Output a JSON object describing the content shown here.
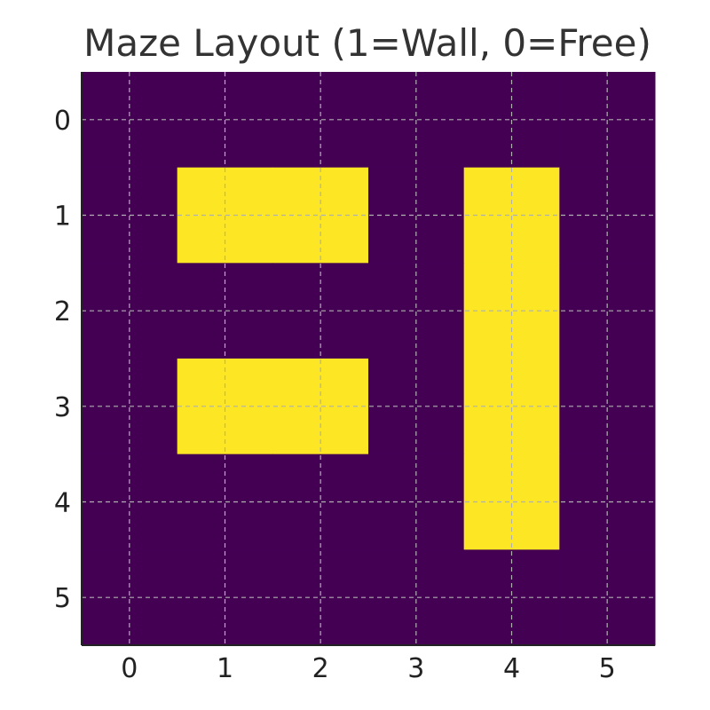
{
  "chart_data": {
    "type": "heatmap",
    "title": "Maze Layout (1=Wall, 0=Free)",
    "xlabel": "",
    "ylabel": "",
    "x_ticks": [
      "0",
      "1",
      "2",
      "3",
      "4",
      "5"
    ],
    "y_ticks": [
      "0",
      "1",
      "2",
      "3",
      "4",
      "5"
    ],
    "xlim": [
      -0.5,
      5.5
    ],
    "ylim": [
      5.5,
      -0.5
    ],
    "grid": true,
    "colormap": {
      "0": "#440154",
      "1": "#fde725"
    },
    "grid_color": "#b0b0b0",
    "values": [
      [
        0,
        0,
        0,
        0,
        0,
        0
      ],
      [
        0,
        1,
        1,
        0,
        1,
        0
      ],
      [
        0,
        0,
        0,
        0,
        1,
        0
      ],
      [
        0,
        1,
        1,
        0,
        1,
        0
      ],
      [
        0,
        0,
        0,
        0,
        1,
        0
      ],
      [
        0,
        0,
        0,
        0,
        0,
        0
      ]
    ]
  }
}
